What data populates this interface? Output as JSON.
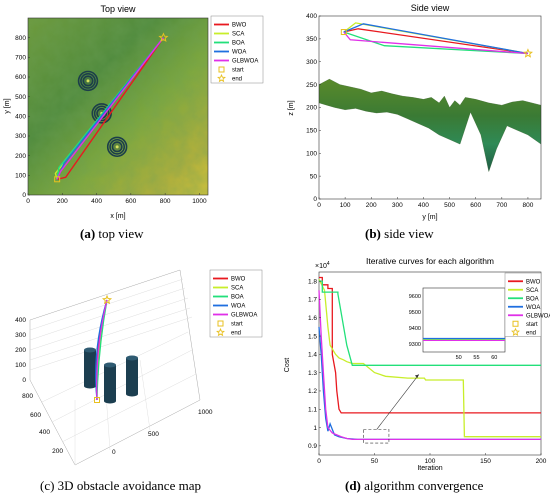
{
  "legend_entries": [
    "BWO",
    "SCA",
    "BOA",
    "WOA",
    "GLBWOA",
    "start",
    "end"
  ],
  "colors": {
    "BWO": "#e8191f",
    "SCA": "#c8ee2a",
    "BOA": "#22e07a",
    "WOA": "#1f6fe0",
    "GLBWOA": "#e030e8",
    "start": "#e8c020",
    "end": "#e8c020",
    "obstacle": "#1c3e50"
  },
  "captions": {
    "a": {
      "letter": "(a)",
      "text": " top view"
    },
    "b": {
      "letter": "(b)",
      "text": " side view"
    },
    "c": {
      "text": "(c) 3D obstacle avoidance map"
    },
    "d": {
      "letter": "(d)",
      "text": " algorithm convergence"
    }
  },
  "chart_data": [
    {
      "id": "top",
      "type": "line",
      "title": "Top view",
      "xlabel": "x [m]",
      "ylabel": "y [m]",
      "xlim": [
        0,
        1050
      ],
      "ylim": [
        0,
        900
      ],
      "xticks": [
        "0",
        "200",
        "400",
        "600",
        "800",
        "1000"
      ],
      "yticks": [
        "0",
        "100",
        "200",
        "300",
        "400",
        "500",
        "600",
        "700",
        "800"
      ],
      "legend_position": "top-right",
      "obstacles": [
        {
          "x": 350,
          "y": 580,
          "r": 55
        },
        {
          "x": 430,
          "y": 415,
          "r": 55
        },
        {
          "x": 520,
          "y": 245,
          "r": 55
        }
      ],
      "start": {
        "x": 170,
        "y": 80
      },
      "end": {
        "x": 790,
        "y": 800
      },
      "series": [
        {
          "name": "BWO",
          "x": [
            170,
            220,
            790
          ],
          "y": [
            80,
            90,
            800
          ]
        },
        {
          "name": "SCA",
          "x": [
            170,
            160,
            790
          ],
          "y": [
            80,
            110,
            800
          ]
        },
        {
          "name": "BOA",
          "x": [
            170,
            180,
            790
          ],
          "y": [
            80,
            140,
            800
          ]
        },
        {
          "name": "WOA",
          "x": [
            170,
            210,
            790
          ],
          "y": [
            80,
            160,
            800
          ]
        },
        {
          "name": "GLBWOA",
          "x": [
            170,
            190,
            790
          ],
          "y": [
            80,
            120,
            800
          ]
        }
      ]
    },
    {
      "id": "side",
      "type": "line",
      "title": "Side view",
      "xlabel": "y [m]",
      "ylabel": "z [m]",
      "xlim": [
        0,
        850
      ],
      "ylim": [
        0,
        400
      ],
      "xticks": [
        "0",
        "100",
        "200",
        "300",
        "400",
        "500",
        "600",
        "700",
        "800"
      ],
      "yticks": [
        "0",
        "50",
        "100",
        "150",
        "200",
        "250",
        "300",
        "350",
        "400"
      ],
      "start": {
        "x": 95,
        "y": 365
      },
      "end": {
        "x": 800,
        "y": 318
      },
      "series": [
        {
          "name": "BWO",
          "x": [
            95,
            150,
            800
          ],
          "y": [
            365,
            372,
            318
          ]
        },
        {
          "name": "SCA",
          "x": [
            95,
            140,
            800
          ],
          "y": [
            365,
            385,
            318
          ]
        },
        {
          "name": "BOA",
          "x": [
            95,
            250,
            800
          ],
          "y": [
            365,
            335,
            318
          ]
        },
        {
          "name": "WOA",
          "x": [
            95,
            170,
            800
          ],
          "y": [
            365,
            383,
            318
          ]
        },
        {
          "name": "GLBWOA",
          "x": [
            95,
            120,
            800
          ],
          "y": [
            365,
            348,
            318
          ]
        }
      ]
    },
    {
      "id": "3d",
      "type": "line",
      "title": "",
      "zticks": [
        "0",
        "100",
        "200",
        "300",
        "400"
      ],
      "xticks": [
        "0",
        "500",
        "1000"
      ],
      "yticks": [
        "200",
        "400",
        "600",
        "800"
      ],
      "legend_position": "top-right"
    },
    {
      "id": "convergence",
      "type": "line",
      "title": "Iterative curves for each algorithm",
      "xlabel": "Iteration",
      "ylabel": "Cost",
      "exponent": "×10",
      "exponent_power": "4",
      "xlim": [
        0,
        200
      ],
      "ylim": [
        0.85,
        1.85
      ],
      "xticks": [
        "0",
        "50",
        "100",
        "150",
        "200"
      ],
      "yticks": [
        "0.9",
        "1",
        "1.1",
        "1.2",
        "1.3",
        "1.4",
        "1.5",
        "1.6",
        "1.7",
        "1.8"
      ],
      "legend_position": "top-right",
      "inset": {
        "xticks": [
          "50",
          "55",
          "60"
        ],
        "yticks": [
          "9300",
          "9400",
          "9500",
          "9600"
        ],
        "xlim": [
          40,
          63
        ],
        "ylim": [
          9250,
          9650
        ]
      },
      "series": [
        {
          "name": "BWO",
          "x": [
            0,
            3,
            3,
            8,
            8,
            12,
            12,
            15,
            16,
            18,
            20,
            25,
            50,
            100,
            150,
            200
          ],
          "y": [
            1.82,
            1.82,
            1.78,
            1.78,
            1.76,
            1.76,
            1.4,
            1.3,
            1.2,
            1.1,
            1.08,
            1.08,
            1.08,
            1.08,
            1.08,
            1.08
          ]
        },
        {
          "name": "SCA",
          "x": [
            0,
            5,
            8,
            10,
            15,
            18,
            22,
            25,
            30,
            40,
            50,
            60,
            80,
            95,
            96,
            120,
            125,
            130,
            131,
            135,
            200
          ],
          "y": [
            1.81,
            1.75,
            1.55,
            1.45,
            1.4,
            1.38,
            1.37,
            1.36,
            1.35,
            1.35,
            1.3,
            1.28,
            1.27,
            1.27,
            1.26,
            1.26,
            1.26,
            1.26,
            0.95,
            0.95,
            0.95
          ]
        },
        {
          "name": "BOA",
          "x": [
            0,
            3,
            3,
            17,
            17,
            25,
            30,
            200
          ],
          "y": [
            1.8,
            1.8,
            1.74,
            1.74,
            1.73,
            1.45,
            1.34,
            1.34
          ]
        },
        {
          "name": "WOA",
          "x": [
            0,
            2,
            4,
            6,
            8,
            10,
            14,
            18,
            25,
            35,
            200
          ],
          "y": [
            1.55,
            1.4,
            1.2,
            1.05,
            0.98,
            1.02,
            0.96,
            0.95,
            0.94,
            0.935,
            0.935
          ]
        },
        {
          "name": "GLBWOA",
          "x": [
            0,
            2,
            4,
            6,
            8,
            12,
            16,
            20,
            25,
            30,
            200
          ],
          "y": [
            1.75,
            1.5,
            1.3,
            1.1,
            1.0,
            0.97,
            0.96,
            0.95,
            0.94,
            0.935,
            0.935
          ]
        }
      ]
    }
  ]
}
